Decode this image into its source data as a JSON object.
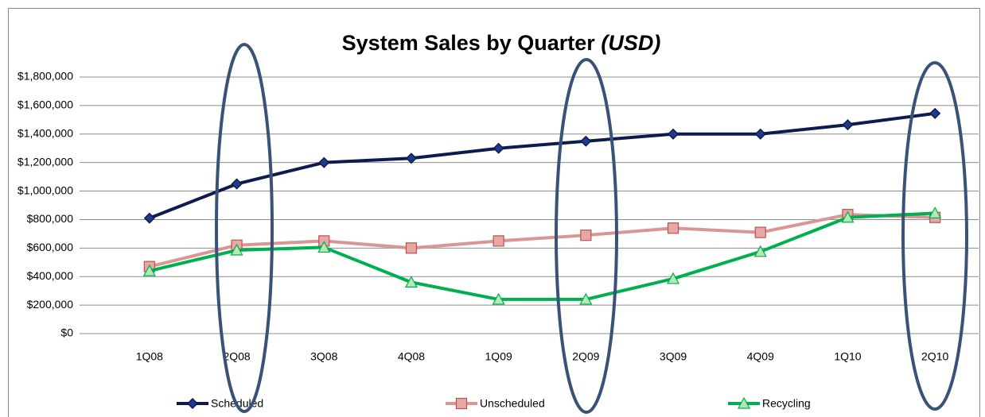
{
  "chart_data": {
    "type": "line",
    "title": "System Sales by Quarter",
    "title_note": "(USD)",
    "categories": [
      "1Q08",
      "2Q08",
      "3Q08",
      "4Q08",
      "1Q09",
      "2Q09",
      "3Q09",
      "4Q09",
      "1Q10",
      "2Q10"
    ],
    "series": [
      {
        "name": "Scheduled",
        "color": "#0d1b4f",
        "marker": "diamond",
        "marker_fill": "#1f3a8a",
        "values": [
          810000,
          1050000,
          1200000,
          1230000,
          1300000,
          1350000,
          1400000,
          1400000,
          1465000,
          1545000
        ]
      },
      {
        "name": "Unscheduled",
        "color": "#d99694",
        "marker": "square",
        "marker_fill": "#e6a8a6",
        "values": [
          470000,
          620000,
          650000,
          600000,
          650000,
          690000,
          740000,
          710000,
          835000,
          815000
        ]
      },
      {
        "name": "Recycling",
        "color": "#00b050",
        "marker": "triangle",
        "marker_fill": "#b6e8b6",
        "values": [
          440000,
          585000,
          605000,
          360000,
          240000,
          240000,
          385000,
          575000,
          815000,
          845000
        ]
      }
    ],
    "ylim": [
      0,
      1800000
    ],
    "yticks": [
      {
        "value": 0,
        "label": "$0"
      },
      {
        "value": 200000,
        "label": "$200,000"
      },
      {
        "value": 400000,
        "label": "$400,000"
      },
      {
        "value": 600000,
        "label": "$600,000"
      },
      {
        "value": 800000,
        "label": "$800,000"
      },
      {
        "value": 1000000,
        "label": "$1,000,000"
      },
      {
        "value": 1200000,
        "label": "$1,200,000"
      },
      {
        "value": 1400000,
        "label": "$1,400,000"
      },
      {
        "value": 1600000,
        "label": "$1,600,000"
      },
      {
        "value": 1800000,
        "label": "$1,800,000"
      }
    ],
    "grid": true,
    "legend": "bottom"
  }
}
